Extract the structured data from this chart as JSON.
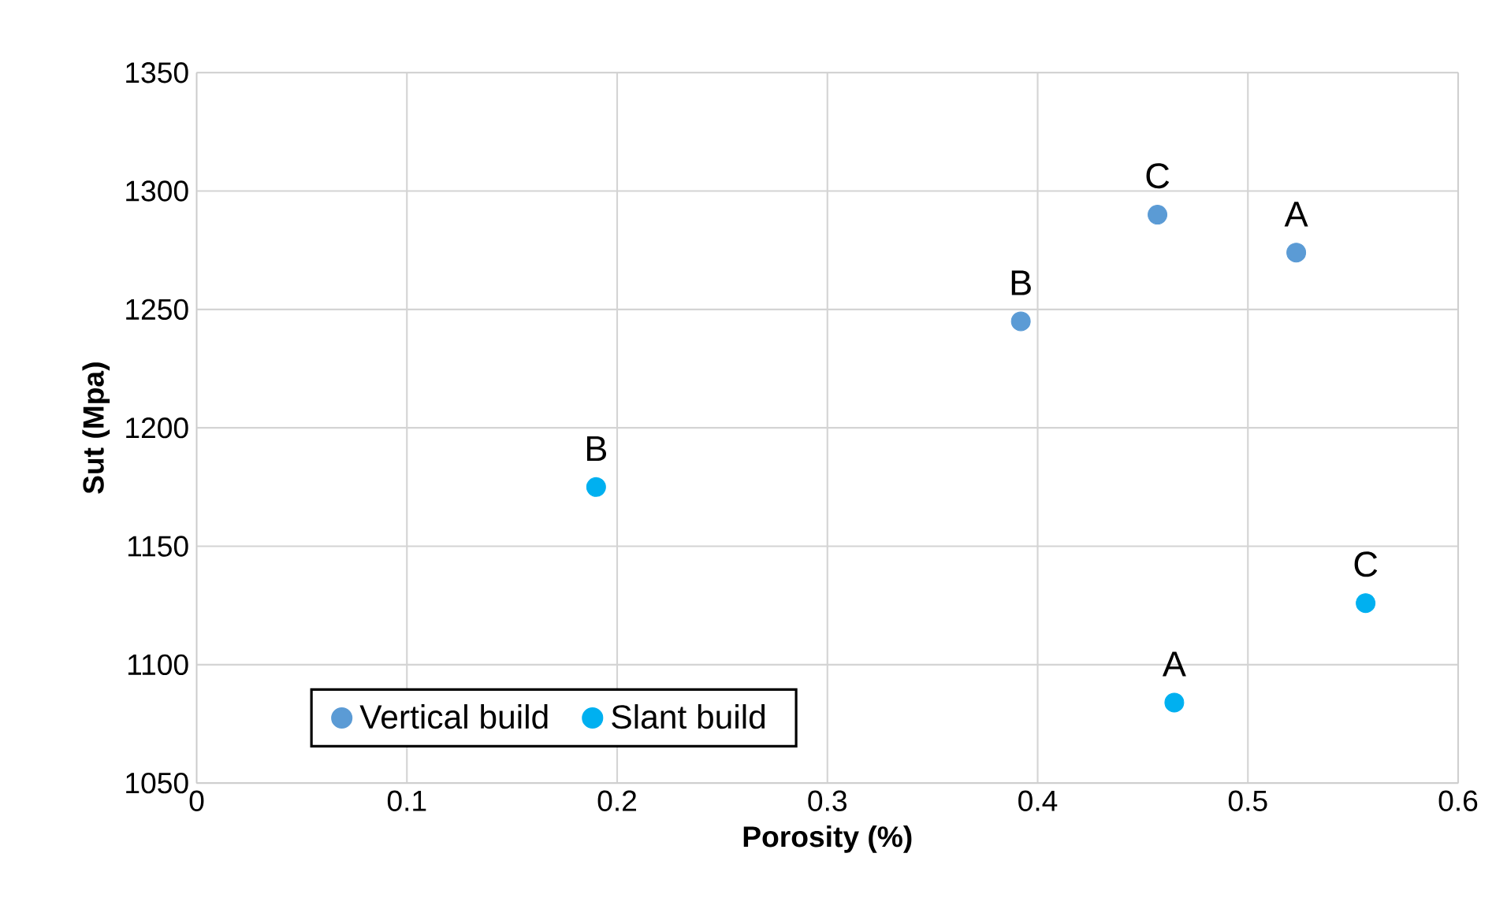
{
  "chart_data": {
    "type": "scatter",
    "xlabel": "Porosity (%)",
    "ylabel": "Sut (Mpa)",
    "xlim": [
      0,
      0.6
    ],
    "xticks": [
      0,
      0.1,
      0.2,
      0.3,
      0.4,
      0.5,
      0.6
    ],
    "ylim": [
      1050,
      1350
    ],
    "yticks": [
      1050,
      1100,
      1150,
      1200,
      1250,
      1300,
      1350
    ],
    "grid": true,
    "legend": "bottom left",
    "marker": "circle",
    "series": [
      {
        "name": "Vertical build",
        "color": "#5b9bd5",
        "x": [
          0.523,
          0.392,
          0.457
        ],
        "values": [
          1274,
          1245,
          1290
        ]
      },
      {
        "name": "Slant build",
        "color": "#00b0f0",
        "x": [
          0.465,
          0.19,
          0.556
        ],
        "values": [
          1084,
          1175,
          1126
        ]
      }
    ],
    "annotations": [
      {
        "text": "A",
        "x": 0.523,
        "y": 1274
      },
      {
        "text": "B",
        "x": 0.392,
        "y": 1245
      },
      {
        "text": "C",
        "x": 0.457,
        "y": 1290
      },
      {
        "text": "A",
        "x": 0.465,
        "y": 1084
      },
      {
        "text": "B",
        "x": 0.19,
        "y": 1175
      },
      {
        "text": "C",
        "x": 0.556,
        "y": 1126
      }
    ]
  }
}
